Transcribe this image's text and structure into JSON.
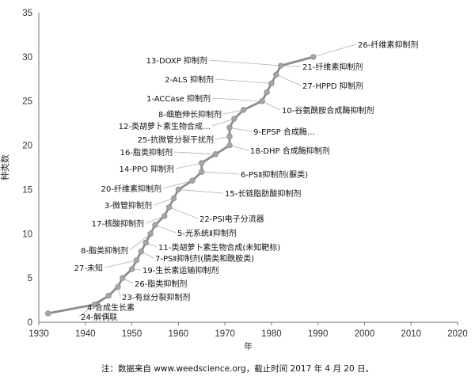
{
  "chart_data": {
    "type": "line",
    "title": "",
    "xlabel": "年",
    "ylabel": "种类数",
    "xlim": [
      1930,
      2020
    ],
    "ylim": [
      0,
      35
    ],
    "x_ticks": [
      "1930",
      "1940",
      "1950",
      "1960",
      "1970",
      "1980",
      "1990",
      "2000",
      "2010",
      "2020"
    ],
    "y_ticks": [
      "0",
      "5",
      "10",
      "15",
      "20",
      "25",
      "30",
      "35"
    ],
    "grid": false,
    "series": [
      {
        "points": [
          {
            "x": 1932,
            "y": 1
          },
          {
            "x": 1942,
            "y": 2
          },
          {
            "x": 1945,
            "y": 3
          },
          {
            "x": 1947,
            "y": 4
          },
          {
            "x": 1948,
            "y": 5
          },
          {
            "x": 1950,
            "y": 6
          },
          {
            "x": 1951,
            "y": 7
          },
          {
            "x": 1952,
            "y": 8
          },
          {
            "x": 1953,
            "y": 9
          },
          {
            "x": 1954,
            "y": 10
          },
          {
            "x": 1955,
            "y": 11
          },
          {
            "x": 1957,
            "y": 12
          },
          {
            "x": 1958,
            "y": 13
          },
          {
            "x": 1959,
            "y": 14
          },
          {
            "x": 1960,
            "y": 15
          },
          {
            "x": 1963,
            "y": 16
          },
          {
            "x": 1965,
            "y": 17
          },
          {
            "x": 1965,
            "y": 18
          },
          {
            "x": 1968,
            "y": 19
          },
          {
            "x": 1971,
            "y": 20
          },
          {
            "x": 1971,
            "y": 21
          },
          {
            "x": 1971,
            "y": 22
          },
          {
            "x": 1972,
            "y": 23
          },
          {
            "x": 1974,
            "y": 24
          },
          {
            "x": 1978,
            "y": 25
          },
          {
            "x": 1979,
            "y": 26
          },
          {
            "x": 1980,
            "y": 27
          },
          {
            "x": 1981,
            "y": 28
          },
          {
            "x": 1982,
            "y": 29
          },
          {
            "x": 1989,
            "y": 30
          }
        ]
      }
    ],
    "annotations": [
      {
        "text": "26-纤维素抑制剂",
        "x": 1989,
        "y": 30
      },
      {
        "text": "21-纤维素抑制剂",
        "x": 1982,
        "y": 29
      },
      {
        "text": "13-DOXP 抑制剂",
        "x": 1982,
        "y": 29
      },
      {
        "text": "27-HPPD 抑制剂",
        "x": 1981,
        "y": 28
      },
      {
        "text": "2-ALS 抑制剂",
        "x": 1980,
        "y": 27
      },
      {
        "text": "1-ACCase 抑制剂",
        "x": 1978,
        "y": 25
      },
      {
        "text": "10-谷氨酰胺合成酶抑制剂",
        "x": 1978,
        "y": 25
      },
      {
        "text": "8-细胞伸长抑制剂",
        "x": 1974,
        "y": 24
      },
      {
        "text": "12-类胡萝卜素生物合成…",
        "x": 1972,
        "y": 23
      },
      {
        "text": "9-EPSP 合成酶…",
        "x": 1971,
        "y": 22
      },
      {
        "text": "25-抗微管分裂干扰剂",
        "x": 1971,
        "y": 21
      },
      {
        "text": "18-DHP 合成酶抑制剂",
        "x": 1971,
        "y": 20
      },
      {
        "text": "16-脂类抑制剂",
        "x": 1968,
        "y": 19
      },
      {
        "text": "14-PPO 抑制剂",
        "x": 1965,
        "y": 18
      },
      {
        "text": "6-PSⅡ抑制剂(脲类)",
        "x": 1965,
        "y": 17
      },
      {
        "text": "20-纤维素抑制剂",
        "x": 1963,
        "y": 16
      },
      {
        "text": "15-长链脂肪酸抑制剂",
        "x": 1960,
        "y": 15
      },
      {
        "text": "3-微管抑制剂",
        "x": 1959,
        "y": 14
      },
      {
        "text": "22-PSⅠ电子分流器",
        "x": 1958,
        "y": 13
      },
      {
        "text": "17-核酸抑制剂",
        "x": 1957,
        "y": 12
      },
      {
        "text": "5-光系统Ⅱ抑制剂",
        "x": 1955,
        "y": 11
      },
      {
        "text": "8-脂类抑制剂",
        "x": 1954,
        "y": 10
      },
      {
        "text": "11-类胡萝卜素生物合成(未知靶标)",
        "x": 1953,
        "y": 9
      },
      {
        "text": "7-PSⅡ抑制剂(腈类和酰胺类)",
        "x": 1952,
        "y": 8
      },
      {
        "text": "27-未知",
        "x": 1951,
        "y": 7
      },
      {
        "text": "19-生长素运输抑制剂",
        "x": 1950,
        "y": 6
      },
      {
        "text": "26-脂类抑制剂",
        "x": 1948,
        "y": 5
      },
      {
        "text": "23-有丝分裂抑制剂",
        "x": 1947,
        "y": 4
      },
      {
        "text": "4-合成生长素",
        "x": 1945,
        "y": 3
      },
      {
        "text": "24-解偶联",
        "x": 1942,
        "y": 2
      }
    ],
    "line_color": "#8c8c8c",
    "marker_color": "#a6a6a6",
    "axis_color": "#777777",
    "leader_color": "#b0b0b0"
  },
  "footnote": "注：数据来自 www.weedscience.org，截止时间 2017 年 4 月 20 日。"
}
